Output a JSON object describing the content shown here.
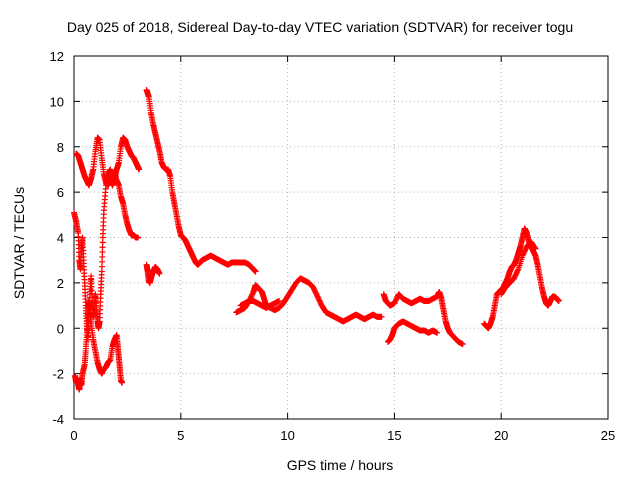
{
  "chart_data": {
    "type": "scatter",
    "title": "Day 025 of 2018, Sidereal Day-to-day VTEC variation (SDTVAR) for receiver togu",
    "xlabel": "GPS time / hours",
    "ylabel": "SDTVAR / TECUs",
    "xlim": [
      0,
      25
    ],
    "ylim": [
      -4,
      12
    ],
    "xticks": [
      0,
      5,
      10,
      15,
      20,
      25
    ],
    "yticks": [
      -4,
      -2,
      0,
      2,
      4,
      6,
      8,
      10,
      12
    ],
    "grid": true,
    "marker": "+",
    "marker_color": "#ff0000",
    "series": [
      {
        "name": "togu",
        "segments": [
          [
            [
              0.0,
              5.1
            ],
            [
              0.1,
              4.7
            ],
            [
              0.2,
              4.2
            ],
            [
              0.25,
              3.0
            ],
            [
              0.3,
              2.6
            ],
            [
              0.35,
              3.5
            ],
            [
              0.4,
              4.0
            ],
            [
              0.45,
              3.0
            ],
            [
              0.5,
              2.0
            ],
            [
              0.55,
              1.0
            ],
            [
              0.6,
              0.2
            ],
            [
              0.65,
              -0.5
            ],
            [
              0.7,
              0.5
            ],
            [
              0.75,
              1.5
            ],
            [
              0.8,
              2.3
            ],
            [
              0.85,
              1.2
            ],
            [
              0.9,
              0.5
            ],
            [
              0.95,
              1.0
            ],
            [
              1.0,
              1.5
            ],
            [
              1.05,
              0.8
            ],
            [
              1.1,
              0.3
            ],
            [
              1.15,
              0.0
            ],
            [
              1.2,
              0.3
            ],
            [
              1.25,
              1.5
            ],
            [
              1.3,
              2.5
            ],
            [
              1.35,
              4.0
            ],
            [
              1.4,
              5.2
            ],
            [
              1.5,
              6.3
            ],
            [
              1.6,
              6.8
            ],
            [
              1.7,
              7.0
            ],
            [
              1.8,
              6.6
            ],
            [
              1.9,
              6.9
            ],
            [
              2.0,
              6.5
            ],
            [
              2.1,
              6.3
            ],
            [
              2.2,
              5.8
            ],
            [
              2.3,
              5.5
            ],
            [
              2.4,
              5.0
            ],
            [
              2.5,
              4.6
            ],
            [
              2.6,
              4.3
            ],
            [
              2.7,
              4.1
            ],
            [
              2.8,
              4.1
            ],
            [
              2.9,
              4.0
            ],
            [
              3.0,
              4.0
            ]
          ],
          [
            [
              0.1,
              7.7
            ],
            [
              0.2,
              7.6
            ],
            [
              0.3,
              7.3
            ],
            [
              0.4,
              7.0
            ],
            [
              0.5,
              6.7
            ],
            [
              0.6,
              6.5
            ],
            [
              0.7,
              6.3
            ],
            [
              0.8,
              6.6
            ],
            [
              0.9,
              7.0
            ],
            [
              1.0,
              7.8
            ],
            [
              1.1,
              8.4
            ],
            [
              1.2,
              8.3
            ],
            [
              1.3,
              7.5
            ],
            [
              1.4,
              6.8
            ],
            [
              1.5,
              6.4
            ],
            [
              1.6,
              6.3
            ],
            [
              1.7,
              6.6
            ],
            [
              1.8,
              6.3
            ],
            [
              1.9,
              6.6
            ],
            [
              2.0,
              7.0
            ],
            [
              2.1,
              7.3
            ],
            [
              2.2,
              8.0
            ],
            [
              2.3,
              8.4
            ],
            [
              2.4,
              8.3
            ],
            [
              2.5,
              8.0
            ],
            [
              2.6,
              7.8
            ],
            [
              2.7,
              7.6
            ],
            [
              2.8,
              7.5
            ],
            [
              2.9,
              7.3
            ],
            [
              3.0,
              7.1
            ],
            [
              3.05,
              7.0
            ]
          ],
          [
            [
              0.05,
              -2.1
            ],
            [
              0.1,
              -2.4
            ],
            [
              0.15,
              -2.2
            ],
            [
              0.2,
              -2.5
            ],
            [
              0.25,
              -2.7
            ],
            [
              0.3,
              -2.3
            ],
            [
              0.35,
              -2.5
            ],
            [
              0.4,
              -2.0
            ],
            [
              0.5,
              -1.6
            ],
            [
              0.55,
              -1.0
            ],
            [
              0.6,
              -0.3
            ],
            [
              0.65,
              0.6
            ],
            [
              0.7,
              1.2
            ],
            [
              0.75,
              0.8
            ],
            [
              0.8,
              0.2
            ],
            [
              0.9,
              -0.5
            ],
            [
              1.0,
              -1.0
            ],
            [
              1.1,
              -1.5
            ],
            [
              1.2,
              -1.8
            ],
            [
              1.3,
              -2.0
            ],
            [
              1.4,
              -1.8
            ],
            [
              1.5,
              -1.7
            ],
            [
              1.6,
              -1.5
            ],
            [
              1.7,
              -1.4
            ],
            [
              1.8,
              -0.8
            ],
            [
              1.9,
              -0.5
            ],
            [
              2.0,
              -0.3
            ],
            [
              2.05,
              -0.8
            ],
            [
              2.1,
              -1.3
            ],
            [
              2.15,
              -1.8
            ],
            [
              2.2,
              -2.3
            ],
            [
              2.25,
              -2.4
            ]
          ],
          [
            [
              3.4,
              10.5
            ],
            [
              3.5,
              10.2
            ],
            [
              3.6,
              9.5
            ],
            [
              3.7,
              9.0
            ],
            [
              3.8,
              8.6
            ],
            [
              3.9,
              8.2
            ],
            [
              4.0,
              7.8
            ],
            [
              4.1,
              7.3
            ],
            [
              4.2,
              7.1
            ],
            [
              4.3,
              7.0
            ],
            [
              4.4,
              7.0
            ],
            [
              4.5,
              6.7
            ],
            [
              4.6,
              6.0
            ],
            [
              4.7,
              5.5
            ],
            [
              4.8,
              5.0
            ],
            [
              4.9,
              4.5
            ],
            [
              5.0,
              4.1
            ],
            [
              5.1,
              4.0
            ],
            [
              5.2,
              3.9
            ],
            [
              5.3,
              3.7
            ],
            [
              5.4,
              3.5
            ],
            [
              5.5,
              3.3
            ],
            [
              5.6,
              3.1
            ],
            [
              5.7,
              2.9
            ],
            [
              5.8,
              2.8
            ],
            [
              5.9,
              2.9
            ],
            [
              6.0,
              3.0
            ],
            [
              6.2,
              3.1
            ],
            [
              6.4,
              3.2
            ],
            [
              6.6,
              3.1
            ],
            [
              6.8,
              3.0
            ],
            [
              7.0,
              2.9
            ],
            [
              7.2,
              2.8
            ],
            [
              7.4,
              2.9
            ],
            [
              7.6,
              2.9
            ],
            [
              7.8,
              2.9
            ],
            [
              8.0,
              2.9
            ],
            [
              8.2,
              2.8
            ],
            [
              8.4,
              2.6
            ],
            [
              8.5,
              2.5
            ]
          ],
          [
            [
              3.4,
              2.8
            ],
            [
              3.45,
              2.5
            ],
            [
              3.5,
              2.1
            ],
            [
              3.55,
              2.0
            ],
            [
              3.6,
              2.2
            ],
            [
              3.7,
              2.5
            ],
            [
              3.8,
              2.7
            ],
            [
              3.9,
              2.6
            ],
            [
              4.0,
              2.4
            ]
          ],
          [
            [
              7.6,
              0.7
            ],
            [
              7.8,
              0.8
            ],
            [
              8.0,
              0.9
            ],
            [
              8.2,
              1.2
            ],
            [
              8.4,
              1.6
            ],
            [
              8.5,
              1.9
            ],
            [
              8.6,
              1.8
            ],
            [
              8.8,
              1.6
            ],
            [
              8.9,
              1.3
            ],
            [
              9.0,
              1.0
            ],
            [
              9.2,
              0.9
            ],
            [
              9.4,
              0.8
            ],
            [
              9.6,
              0.9
            ],
            [
              9.8,
              1.1
            ],
            [
              10.0,
              1.4
            ],
            [
              10.2,
              1.7
            ],
            [
              10.4,
              2.0
            ],
            [
              10.6,
              2.2
            ],
            [
              10.8,
              2.1
            ],
            [
              11.0,
              2.0
            ],
            [
              11.2,
              1.8
            ],
            [
              11.4,
              1.4
            ],
            [
              11.6,
              1.0
            ],
            [
              11.8,
              0.7
            ],
            [
              12.0,
              0.6
            ],
            [
              12.2,
              0.5
            ],
            [
              12.4,
              0.4
            ],
            [
              12.6,
              0.3
            ],
            [
              12.8,
              0.4
            ],
            [
              13.0,
              0.5
            ],
            [
              13.2,
              0.6
            ],
            [
              13.4,
              0.5
            ],
            [
              13.6,
              0.4
            ],
            [
              13.8,
              0.5
            ],
            [
              14.0,
              0.6
            ],
            [
              14.2,
              0.5
            ],
            [
              14.4,
              0.5
            ]
          ],
          [
            [
              7.8,
              1.0
            ],
            [
              8.0,
              1.1
            ],
            [
              8.2,
              1.2
            ],
            [
              8.4,
              1.2
            ],
            [
              8.6,
              1.1
            ],
            [
              8.8,
              1.0
            ],
            [
              9.0,
              0.9
            ],
            [
              9.2,
              1.0
            ],
            [
              9.4,
              1.1
            ],
            [
              9.6,
              1.2
            ]
          ],
          [
            [
              14.5,
              1.5
            ],
            [
              14.6,
              1.2
            ],
            [
              14.8,
              1.0
            ],
            [
              15.0,
              1.1
            ],
            [
              15.2,
              1.5
            ],
            [
              15.4,
              1.3
            ],
            [
              15.6,
              1.2
            ],
            [
              15.8,
              1.1
            ],
            [
              16.0,
              1.2
            ],
            [
              16.2,
              1.3
            ],
            [
              16.4,
              1.2
            ],
            [
              16.6,
              1.2
            ],
            [
              16.8,
              1.3
            ],
            [
              17.0,
              1.4
            ],
            [
              17.1,
              1.6
            ],
            [
              17.2,
              1.3
            ],
            [
              17.3,
              0.8
            ],
            [
              17.4,
              0.3
            ],
            [
              17.5,
              0.0
            ],
            [
              17.6,
              -0.2
            ],
            [
              17.8,
              -0.4
            ],
            [
              18.0,
              -0.6
            ],
            [
              18.2,
              -0.7
            ]
          ],
          [
            [
              14.7,
              -0.6
            ],
            [
              14.8,
              -0.5
            ],
            [
              14.9,
              -0.3
            ],
            [
              15.0,
              0.0
            ],
            [
              15.2,
              0.2
            ],
            [
              15.4,
              0.3
            ],
            [
              15.6,
              0.2
            ],
            [
              15.8,
              0.1
            ],
            [
              16.0,
              0.0
            ],
            [
              16.2,
              -0.1
            ],
            [
              16.4,
              -0.1
            ],
            [
              16.6,
              -0.2
            ],
            [
              16.8,
              -0.1
            ],
            [
              17.0,
              -0.2
            ]
          ],
          [
            [
              19.2,
              0.2
            ],
            [
              19.3,
              0.1
            ],
            [
              19.4,
              0.0
            ],
            [
              19.5,
              0.2
            ],
            [
              19.6,
              0.5
            ],
            [
              19.7,
              1.0
            ],
            [
              19.8,
              1.5
            ],
            [
              19.9,
              1.6
            ],
            [
              20.0,
              1.7
            ],
            [
              20.1,
              1.8
            ],
            [
              20.2,
              2.0
            ],
            [
              20.3,
              2.2
            ],
            [
              20.4,
              2.5
            ],
            [
              20.5,
              2.7
            ],
            [
              20.6,
              2.8
            ],
            [
              20.7,
              3.0
            ],
            [
              20.8,
              3.3
            ],
            [
              20.9,
              3.6
            ],
            [
              21.0,
              4.0
            ],
            [
              21.1,
              4.4
            ],
            [
              21.2,
              4.2
            ],
            [
              21.3,
              3.8
            ],
            [
              21.4,
              3.6
            ],
            [
              21.5,
              3.4
            ],
            [
              21.6,
              3.2
            ],
            [
              21.7,
              2.8
            ],
            [
              21.8,
              2.3
            ],
            [
              21.9,
              1.8
            ],
            [
              22.0,
              1.4
            ],
            [
              22.1,
              1.1
            ],
            [
              22.2,
              1.0
            ],
            [
              22.3,
              1.2
            ],
            [
              22.4,
              1.4
            ],
            [
              22.5,
              1.4
            ],
            [
              22.6,
              1.3
            ],
            [
              22.7,
              1.2
            ]
          ],
          [
            [
              20.0,
              1.5
            ],
            [
              20.2,
              1.8
            ],
            [
              20.4,
              2.0
            ],
            [
              20.6,
              2.2
            ],
            [
              20.8,
              2.6
            ],
            [
              21.0,
              3.2
            ],
            [
              21.2,
              3.6
            ],
            [
              21.4,
              3.8
            ],
            [
              21.6,
              3.5
            ]
          ]
        ]
      }
    ]
  }
}
